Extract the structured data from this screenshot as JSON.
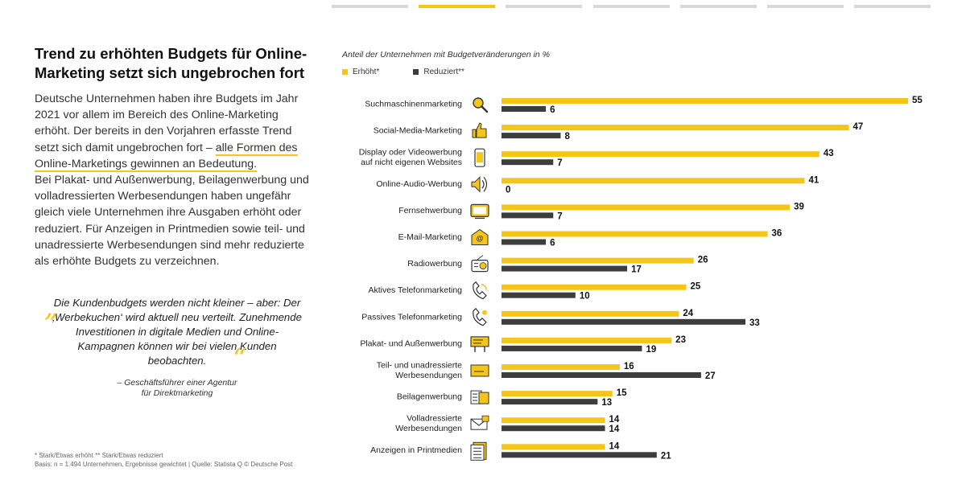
{
  "page": {
    "title_line1": "Trend zu erhöhten Budgets für Online-",
    "title_line2": "Marketing setzt sich ungebrochen fort",
    "body_p1_part1": "Deutsche Unternehmen haben ihre Budgets im Jahr 2021 vor allem im Bereich des Online-Marketing erhöht. Der bereits in den Vorjahren erfasste Trend setzt sich damit ungebrochen fort – ",
    "body_p1_highlight": "alle Formen des Online-Marketings gewinnen an Bedeutung.",
    "body_p2": "Bei Plakat- und Außenwerbung, Beilagenwerbung und volladressierten Werbesendungen haben ungefähr gleich viele Unternehmen ihre Ausgaben erhöht oder reduziert. Für Anzeigen in Printmedien sowie teil- und unadressierte Werbesendungen sind mehr reduzierte als erhöhte Budgets zu verzeichnen.",
    "quote": "Die Kundenbudgets werden nicht kleiner – aber: Der ‚Werbekuchen‘ wird aktuell neu verteilt. Zunehmende Investitionen in digitale Medien und Online-Kampagnen können wir bei vielen Kunden beobachten.",
    "quote_open": "„",
    "quote_close": "“",
    "quote_author_line1": "– Geschäftsführer einer Agentur",
    "quote_author_line2": "für Direktmarketing",
    "footnote_line1": "* Stark/Etwas erhöht ** Stark/Etwas reduziert",
    "footnote_line2": "Basis: n = 1.494 Unternehmen, Ergebnisse gewichtet | Quelle: Statista Q © Deutsche Post"
  },
  "progress": {
    "total_steps": 7,
    "active_step": 2
  },
  "colors": {
    "increased": "#f5c518",
    "reduced": "#3d3d3d",
    "accent": "#f5c518"
  },
  "chart_data": {
    "type": "bar",
    "orientation": "horizontal",
    "subtitle": "Anteil der Unternehmen mit Budgetveränderungen in %",
    "legend_position": "top-left",
    "xlim": [
      0,
      60
    ],
    "grid": false,
    "categories": [
      {
        "label": [
          "Suchmaschinenmarketing"
        ],
        "icon": "magnifier-icon"
      },
      {
        "label": [
          "Social-Media-Marketing"
        ],
        "icon": "thumbs-up-icon"
      },
      {
        "label": [
          "Display oder Videowerbung",
          "auf nicht eigenen Websites"
        ],
        "icon": "smartphone-icon"
      },
      {
        "label": [
          "Online-Audio-Werbung"
        ],
        "icon": "speaker-icon"
      },
      {
        "label": [
          "Fernsehwerbung"
        ],
        "icon": "tv-icon"
      },
      {
        "label": [
          "E-Mail-Marketing"
        ],
        "icon": "email-icon"
      },
      {
        "label": [
          "Radiowerbung"
        ],
        "icon": "radio-icon"
      },
      {
        "label": [
          "Aktives Telefonmarketing"
        ],
        "icon": "phone-icon"
      },
      {
        "label": [
          "Passives Telefonmarketing"
        ],
        "icon": "phone-incoming-icon"
      },
      {
        "label": [
          "Plakat- und Außenwerbung"
        ],
        "icon": "billboard-icon"
      },
      {
        "label": [
          "Teil- und unadressierte",
          "Werbesendungen"
        ],
        "icon": "envelope-icon"
      },
      {
        "label": [
          "Beilagenwerbung"
        ],
        "icon": "newspaper-icon"
      },
      {
        "label": [
          "Volladressierte",
          "Werbesendungen"
        ],
        "icon": "addressed-letter-icon"
      },
      {
        "label": [
          "Anzeigen in Printmedien"
        ],
        "icon": "document-icon"
      }
    ],
    "series": [
      {
        "name": "Erhöht*",
        "values": [
          55,
          47,
          43,
          41,
          39,
          36,
          26,
          25,
          24,
          23,
          16,
          15,
          14,
          14
        ]
      },
      {
        "name": "Reduziert**",
        "values": [
          6,
          8,
          7,
          0,
          7,
          6,
          17,
          10,
          33,
          19,
          27,
          13,
          14,
          21
        ]
      }
    ]
  }
}
